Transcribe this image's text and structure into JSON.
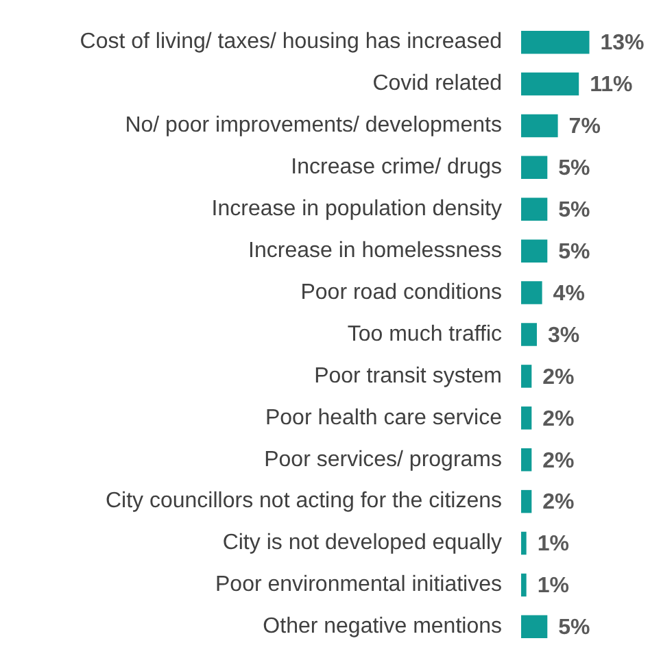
{
  "chart_data": {
    "type": "bar",
    "orientation": "horizontal",
    "categories": [
      "Cost of living/ taxes/ housing has increased",
      "Covid related",
      "No/ poor improvements/ developments",
      "Increase crime/ drugs",
      "Increase in population density",
      "Increase in homelessness",
      "Poor road conditions",
      "Too much traffic",
      "Poor transit system",
      "Poor health care service",
      "Poor services/ programs",
      "City councillors not acting for the citizens",
      "City is not developed equally",
      "Poor environmental initiatives",
      "Other negative mentions"
    ],
    "values": [
      13,
      11,
      7,
      5,
      5,
      5,
      4,
      3,
      2,
      2,
      2,
      2,
      1,
      1,
      5
    ],
    "value_labels": [
      "13%",
      "11%",
      "7%",
      "5%",
      "5%",
      "5%",
      "4%",
      "3%",
      "2%",
      "2%",
      "2%",
      "2%",
      "1%",
      "1%",
      "5%"
    ],
    "color": "#0e9c96",
    "legend": false,
    "tick_labels": "y"
  }
}
